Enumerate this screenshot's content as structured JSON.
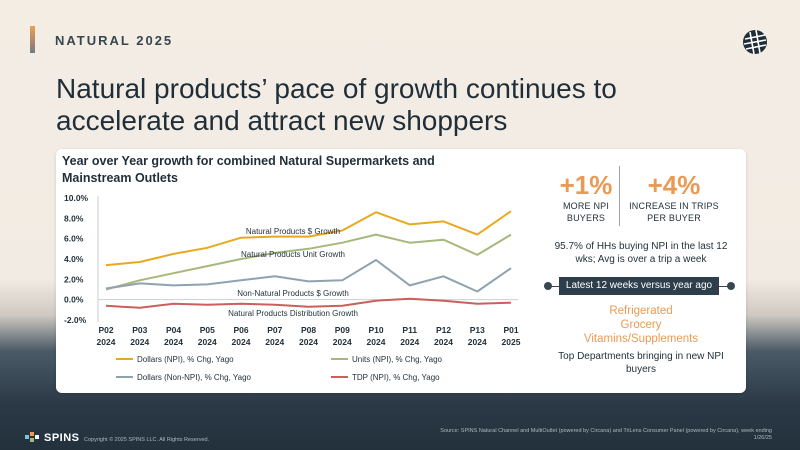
{
  "header": {
    "eyebrow": "NATURAL 2025",
    "title": "Natural products’ pace of growth continues to accelerate and attract new shoppers",
    "logo_icon": "globe-grid-icon"
  },
  "chart_data": {
    "type": "line",
    "title": "Year over Year growth for combined Natural Supermarkets and Mainstream Outlets",
    "categories": [
      [
        "P02",
        "2024"
      ],
      [
        "P03",
        "2024"
      ],
      [
        "P04",
        "2024"
      ],
      [
        "P05",
        "2024"
      ],
      [
        "P06",
        "2024"
      ],
      [
        "P07",
        "2024"
      ],
      [
        "P08",
        "2024"
      ],
      [
        "P09",
        "2024"
      ],
      [
        "P10",
        "2024"
      ],
      [
        "P11",
        "2024"
      ],
      [
        "P12",
        "2024"
      ],
      [
        "P13",
        "2024"
      ],
      [
        "P01",
        "2025"
      ]
    ],
    "y_ticks": [
      "10.0%",
      "8.0%",
      "6.0%",
      "4.0%",
      "2.0%",
      "0.0%",
      "-2.0%"
    ],
    "ylim": [
      -2,
      10
    ],
    "grid": false,
    "legend_position": "bottom",
    "series": [
      {
        "name": "Dollars (NPI), % Chg, Yago",
        "color": "#e8a91f",
        "values": [
          3.4,
          3.7,
          4.5,
          5.1,
          6.1,
          6.2,
          6.2,
          6.8,
          8.6,
          7.4,
          7.7,
          6.4,
          8.7
        ]
      },
      {
        "name": "Units (NPI), % Chg, Yago",
        "color": "#a6b87a",
        "values": [
          1.0,
          1.9,
          2.6,
          3.3,
          4.0,
          4.6,
          5.0,
          5.6,
          6.4,
          5.6,
          5.9,
          4.4,
          6.4
        ]
      },
      {
        "name": "Dollars (Non-NPI), % Chg, Yago",
        "color": "#8fa2b0",
        "values": [
          1.1,
          1.6,
          1.4,
          1.5,
          1.9,
          2.3,
          1.8,
          1.9,
          3.9,
          1.4,
          2.3,
          0.8,
          3.1
        ]
      },
      {
        "name": "TDP (NPI), % Chg, Yago",
        "color": "#c9605b",
        "values": [
          -0.6,
          -0.8,
          -0.4,
          -0.5,
          -0.4,
          -0.5,
          -0.7,
          -0.6,
          -0.1,
          0.1,
          -0.1,
          -0.4,
          -0.3
        ]
      }
    ],
    "annotations": [
      "Natural Products $ Growth",
      "Natural Products Unit Growth",
      "Non-Natural Products $ Growth",
      "Natural Products Distribution Growth"
    ]
  },
  "stats": {
    "npi_value": "+1%",
    "npi_label_1": "MORE NPI",
    "npi_label_2": "BUYERS",
    "trips_value": "+4%",
    "trips_label_1": "INCREASE IN TRIPS",
    "trips_label_2": "PER BUYER",
    "hh_text": "95.7% of HHs buying NPI in the last 12 wks; Avg is over a trip a week",
    "pill": "Latest 12 weeks versus year ago",
    "dept_1": "Refrigerated",
    "dept_2": "Grocery",
    "dept_3": "Vitamins/Supplements",
    "dept_caption": "Top Departments bringing in new NPI buyers",
    "accent_color": "#e99a55"
  },
  "footer": {
    "brand": "SPINS",
    "copyright": "Copyright © 2025 SPINS LLC. All Rights Reserved.",
    "source": "Source: SPINS Natural Channel and MultiOutlet (powered by Circana) and TriLens Consumer Panel (powered by Circana), week ending 1/26/25"
  }
}
